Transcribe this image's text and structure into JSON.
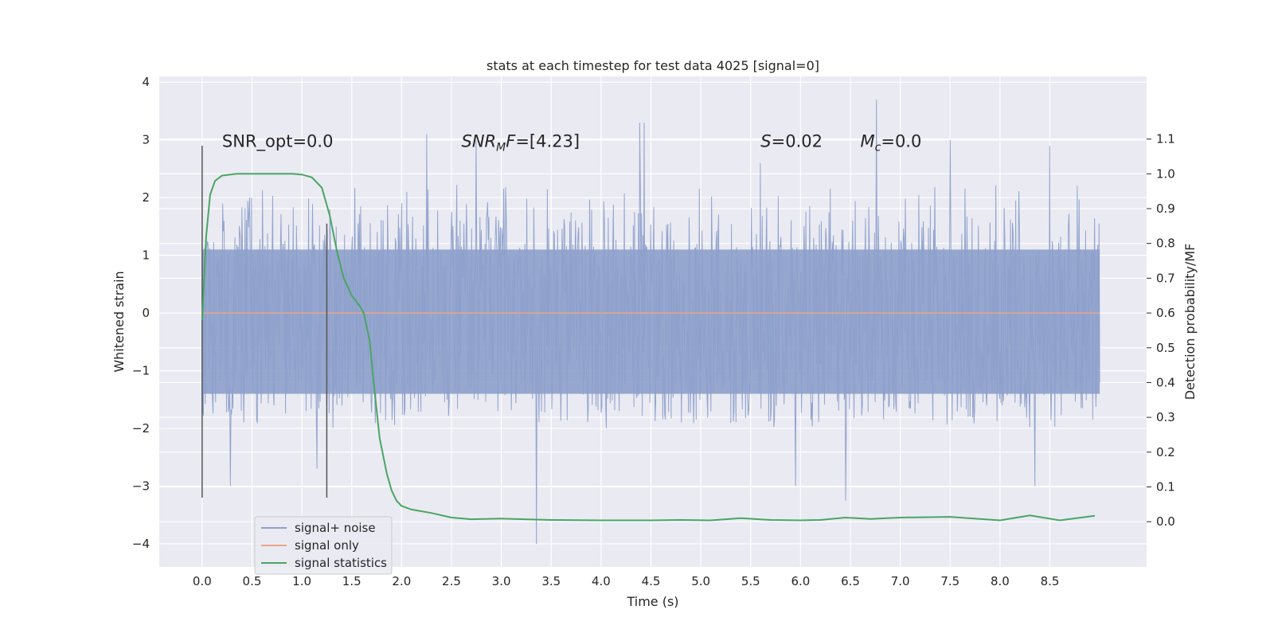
{
  "chart_data": {
    "type": "line",
    "title": "stats at each timestep for test data 4025 [signal=0]",
    "xlabel": "Time (s)",
    "ylabel": "Whitened strain",
    "y2label": "Detection probability/MF",
    "xlim": [
      -0.43,
      9.47
    ],
    "ylim": [
      -4.4,
      4.1
    ],
    "y2lim": [
      -0.13,
      1.28
    ],
    "xticks": [
      0.0,
      0.5,
      1.0,
      1.5,
      2.0,
      2.5,
      3.0,
      3.5,
      4.0,
      4.5,
      5.0,
      5.5,
      6.0,
      6.5,
      7.0,
      7.5,
      8.0,
      8.5
    ],
    "xtick_labels": [
      "0.0",
      "0.5",
      "1.0",
      "1.5",
      "2.0",
      "2.5",
      "3.0",
      "3.5",
      "4.0",
      "4.5",
      "5.0",
      "5.5",
      "6.0",
      "6.5",
      "7.0",
      "7.5",
      "8.0",
      "8.5"
    ],
    "yticks": [
      -4,
      -3,
      -2,
      -1,
      0,
      1,
      2,
      3,
      4
    ],
    "ytick_labels": [
      "−4",
      "−3",
      "−2",
      "−1",
      "0",
      "1",
      "2",
      "3",
      "4"
    ],
    "y2ticks": [
      0.0,
      0.1,
      0.2,
      0.3,
      0.4,
      0.5,
      0.6,
      0.7,
      0.8,
      0.9,
      1.0,
      1.1
    ],
    "y2tick_labels": [
      "0.0",
      "0.1",
      "0.2",
      "0.3",
      "0.4",
      "0.5",
      "0.6",
      "0.7",
      "0.8",
      "0.9",
      "1.0",
      "1.1"
    ],
    "noise": {
      "name": "signal+ noise",
      "color": "#8da0cb",
      "t_start": 0.0,
      "t_end": 9.0,
      "band_low": -1.4,
      "band_high": 1.1,
      "typical_min": -2.0,
      "typical_max": 2.6,
      "peaks": [
        {
          "t": 3.35,
          "y": -4.0
        },
        {
          "t": 6.76,
          "y": 3.7
        },
        {
          "t": 4.39,
          "y": 3.3
        },
        {
          "t": 4.43,
          "y": 3.3
        },
        {
          "t": 0.28,
          "y": -3.0
        },
        {
          "t": 1.15,
          "y": -2.7
        },
        {
          "t": 6.45,
          "y": -3.25
        },
        {
          "t": 8.35,
          "y": -3.0
        },
        {
          "t": 5.95,
          "y": -3.0
        },
        {
          "t": 2.25,
          "y": 3.1
        },
        {
          "t": 7.5,
          "y": 3.0
        },
        {
          "t": 2.75,
          "y": 3.0
        },
        {
          "t": 8.5,
          "y": 2.9
        },
        {
          "t": 5.6,
          "y": 2.6
        }
      ]
    },
    "signal_only": {
      "name": "signal only",
      "color": "#e8a58a",
      "value": 0.0
    },
    "detection": {
      "name": "signal statistics",
      "color": "#4aa564",
      "t": [
        0.0,
        0.04,
        0.08,
        0.13,
        0.2,
        0.35,
        0.6,
        0.9,
        1.0,
        1.1,
        1.2,
        1.28,
        1.35,
        1.42,
        1.5,
        1.58,
        1.62,
        1.68,
        1.72,
        1.78,
        1.85,
        1.9,
        1.95,
        2.0,
        2.1,
        2.3,
        2.5,
        2.7,
        3.0,
        3.5,
        4.0,
        4.5,
        4.8,
        5.1,
        5.4,
        5.7,
        6.0,
        6.2,
        6.45,
        6.7,
        7.0,
        7.5,
        8.0,
        8.3,
        8.6,
        8.95
      ],
      "values": [
        0.58,
        0.82,
        0.94,
        0.98,
        0.995,
        1.0,
        1.0,
        1.0,
        0.998,
        0.99,
        0.96,
        0.88,
        0.78,
        0.7,
        0.65,
        0.62,
        0.6,
        0.52,
        0.4,
        0.24,
        0.14,
        0.09,
        0.06,
        0.045,
        0.035,
        0.025,
        0.012,
        0.007,
        0.009,
        0.005,
        0.004,
        0.004,
        0.005,
        0.004,
        0.01,
        0.005,
        0.004,
        0.005,
        0.012,
        0.008,
        0.012,
        0.014,
        0.004,
        0.018,
        0.004,
        0.017
      ]
    },
    "markers": [
      {
        "t": 0.0,
        "y1": -3.2,
        "y2": 2.9
      },
      {
        "t": 1.25,
        "y1": -3.2,
        "y2": 1.55
      }
    ],
    "annotations": [
      {
        "id": "snr-opt",
        "text": "SNR_opt=0.0",
        "t": 0.2,
        "y": 3.0
      },
      {
        "id": "snr-mf",
        "prefix": "SNR",
        "sub": "M",
        "mid": "F",
        "rest": "=[4.23]",
        "t": 2.6,
        "y": 3.0
      },
      {
        "id": "s-stat",
        "italic": "S",
        "rest": "=0.02",
        "t": 5.6,
        "y": 3.0
      },
      {
        "id": "mc",
        "italic": "M",
        "sub": "c",
        "rest": "=0.0",
        "t": 6.6,
        "y": 3.0
      }
    ],
    "legend": {
      "position": "lower-left",
      "entries": [
        "signal+ noise",
        "signal only",
        "signal statistics"
      ]
    }
  }
}
